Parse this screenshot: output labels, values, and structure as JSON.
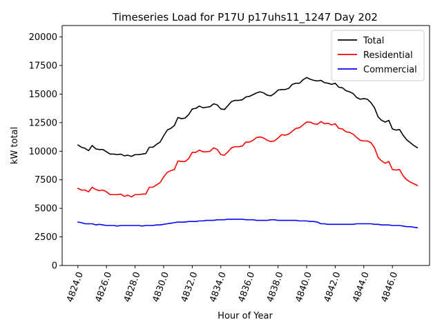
{
  "chart_data": {
    "type": "line",
    "title": "Timeseries Load for P17U p17uhs11_1247  Day 202",
    "xlabel": "Hour of Year",
    "ylabel": "kW total",
    "xlim": [
      4822.9,
      4848.6
    ],
    "ylim": [
      0,
      21000
    ],
    "x_ticks": [
      4824,
      4826,
      4828,
      4830,
      4832,
      4834,
      4836,
      4838,
      4840,
      4842,
      4844,
      4846
    ],
    "x_tick_labels": [
      "4824.0",
      "4826.0",
      "4828.0",
      "4830.0",
      "4832.0",
      "4834.0",
      "4836.0",
      "4838.0",
      "4840.0",
      "4842.0",
      "4844.0",
      "4846.0"
    ],
    "y_ticks": [
      0,
      2500,
      5000,
      7500,
      10000,
      12500,
      15000,
      17500,
      20000
    ],
    "y_tick_labels": [
      "0",
      "2500",
      "5000",
      "7500",
      "10000",
      "12500",
      "15000",
      "17500",
      "20000"
    ],
    "legend_position": "top-right",
    "x": [
      4824.0,
      4824.25,
      4824.5,
      4824.75,
      4825.0,
      4825.25,
      4825.5,
      4825.75,
      4826.0,
      4826.25,
      4826.5,
      4826.75,
      4827.0,
      4827.25,
      4827.5,
      4827.75,
      4828.0,
      4828.25,
      4828.5,
      4828.75,
      4829.0,
      4829.25,
      4829.5,
      4829.75,
      4830.0,
      4830.25,
      4830.5,
      4830.75,
      4831.0,
      4831.25,
      4831.5,
      4831.75,
      4832.0,
      4832.25,
      4832.5,
      4832.75,
      4833.0,
      4833.25,
      4833.5,
      4833.75,
      4834.0,
      4834.25,
      4834.5,
      4834.75,
      4835.0,
      4835.25,
      4835.5,
      4835.75,
      4836.0,
      4836.25,
      4836.5,
      4836.75,
      4837.0,
      4837.25,
      4837.5,
      4837.75,
      4838.0,
      4838.25,
      4838.5,
      4838.75,
      4839.0,
      4839.25,
      4839.5,
      4839.75,
      4840.0,
      4840.25,
      4840.5,
      4840.75,
      4841.0,
      4841.25,
      4841.5,
      4841.75,
      4842.0,
      4842.25,
      4842.5,
      4842.75,
      4843.0,
      4843.25,
      4843.5,
      4843.75,
      4844.0,
      4844.25,
      4844.5,
      4844.75,
      4845.0,
      4845.25,
      4845.5,
      4845.75,
      4846.0,
      4846.25,
      4846.5,
      4846.75,
      4847.0,
      4847.25,
      4847.5,
      4847.75
    ],
    "series": [
      {
        "name": "Total",
        "color": "#000000",
        "values": [
          10550,
          10350,
          10250,
          10050,
          10500,
          10200,
          10150,
          10150,
          9950,
          9750,
          9750,
          9700,
          9750,
          9600,
          9650,
          9550,
          9700,
          9700,
          9750,
          9800,
          10350,
          10350,
          10600,
          10800,
          11350,
          11850,
          12000,
          12250,
          12950,
          12850,
          12900,
          13200,
          13700,
          13750,
          13950,
          13800,
          13850,
          13900,
          14150,
          14050,
          13700,
          13650,
          14000,
          14350,
          14450,
          14450,
          14500,
          14750,
          14800,
          14950,
          15100,
          15200,
          15100,
          14900,
          14850,
          15050,
          15350,
          15400,
          15400,
          15500,
          15850,
          15950,
          15950,
          16250,
          16450,
          16300,
          16200,
          16150,
          16200,
          16000,
          15950,
          15850,
          15950,
          15600,
          15550,
          15300,
          15200,
          15050,
          14700,
          14550,
          14600,
          14550,
          14250,
          13800,
          13000,
          12700,
          12550,
          12700,
          11950,
          11850,
          11900,
          11400,
          11000,
          10750,
          10500,
          10300
        ]
      },
      {
        "name": "Residential",
        "color": "#ff0000",
        "values": [
          6750,
          6600,
          6600,
          6450,
          6850,
          6650,
          6550,
          6600,
          6450,
          6200,
          6200,
          6200,
          6250,
          6050,
          6150,
          6000,
          6200,
          6200,
          6250,
          6250,
          6850,
          6850,
          7050,
          7250,
          7750,
          8150,
          8300,
          8400,
          9150,
          9100,
          9100,
          9350,
          9900,
          9900,
          10100,
          9950,
          9950,
          10000,
          10300,
          10150,
          9700,
          9650,
          9950,
          10300,
          10400,
          10400,
          10450,
          10800,
          10800,
          10950,
          11200,
          11250,
          11150,
          10950,
          10850,
          10900,
          11150,
          11450,
          11400,
          11500,
          11750,
          12000,
          12050,
          12300,
          12550,
          12550,
          12400,
          12350,
          12600,
          12400,
          12450,
          12300,
          12400,
          12000,
          11950,
          11700,
          11650,
          11500,
          11200,
          10950,
          10900,
          10900,
          10750,
          10300,
          9450,
          9150,
          8950,
          9100,
          8400,
          8350,
          8400,
          7850,
          7500,
          7300,
          7150,
          7000
        ]
      },
      {
        "name": "Commercial",
        "color": "#0000ff",
        "values": [
          3800,
          3750,
          3650,
          3650,
          3650,
          3550,
          3600,
          3550,
          3500,
          3500,
          3500,
          3450,
          3500,
          3500,
          3500,
          3500,
          3500,
          3500,
          3450,
          3500,
          3500,
          3500,
          3550,
          3550,
          3600,
          3650,
          3700,
          3750,
          3800,
          3800,
          3800,
          3850,
          3850,
          3850,
          3900,
          3900,
          3950,
          3950,
          3950,
          4000,
          4000,
          4000,
          4050,
          4050,
          4050,
          4050,
          4050,
          4000,
          4000,
          4000,
          3950,
          3950,
          3950,
          3950,
          4000,
          4000,
          3950,
          3950,
          3950,
          3950,
          3950,
          3950,
          3900,
          3900,
          3900,
          3850,
          3850,
          3800,
          3650,
          3650,
          3600,
          3600,
          3600,
          3600,
          3600,
          3600,
          3600,
          3600,
          3650,
          3650,
          3650,
          3650,
          3650,
          3600,
          3600,
          3550,
          3550,
          3550,
          3500,
          3500,
          3500,
          3450,
          3400,
          3400,
          3350,
          3300
        ]
      }
    ]
  }
}
